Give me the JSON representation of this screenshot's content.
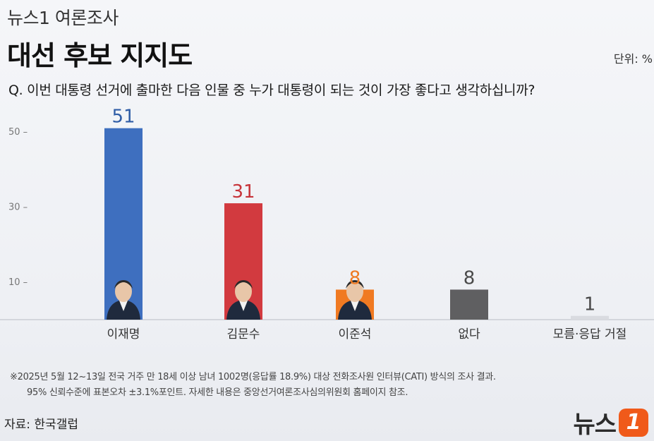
{
  "header": {
    "kicker": "뉴스1 여론조사",
    "title": "대선 후보 지지도"
  },
  "unit": "단위: %",
  "question": "Q. 이번 대통령 선거에 출마한 다음 인물 중 누가 대통령이 되는 것이 가장 좋다고 생각하십니까?",
  "chart_data": {
    "type": "bar",
    "categories": [
      "이재명",
      "김문수",
      "이준석",
      "없다",
      "모름·응답 거절"
    ],
    "values": [
      51,
      31,
      8,
      8,
      1
    ],
    "value_labels": [
      "51",
      "31",
      "8",
      "8",
      "1"
    ],
    "colors": [
      "#3e6fbf",
      "#d23a3f",
      "#f07a22",
      "#5f5f61",
      "#d9dbe0"
    ],
    "label_colors": [
      "#2f5da6",
      "#c7343a",
      "#ef7a22",
      "#4a4a4a",
      "#4a4a4a"
    ],
    "ylim": [
      0,
      55
    ],
    "yticks": [
      10,
      30,
      50
    ],
    "ytick_labels": [
      "10 –",
      "30 –",
      "50 –"
    ],
    "photos": [
      true,
      true,
      true,
      false,
      false
    ],
    "grid": false
  },
  "footnote": {
    "line1": "※2025년 5월 12~13일 전국 거주 만 18세 이상 남녀 1002명(응답률 18.9%) 대상 전화조사원 인터뷰(CATI) 방식의 조사 결과.",
    "line2": "95% 신뢰수준에 표본오차 ±3.1%포인트. 자세한 내용은 중앙선거여론조사심의위원회 홈페이지 참조."
  },
  "source": "자료: 한국갤럽",
  "logo": {
    "text": "뉴스",
    "mark": "1"
  }
}
